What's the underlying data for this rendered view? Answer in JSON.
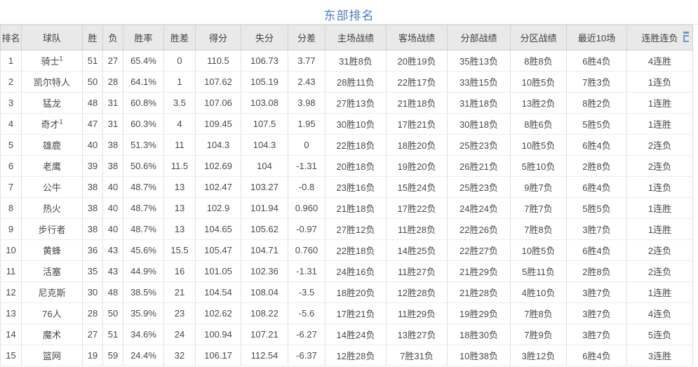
{
  "title": "东部排名",
  "accent_color": "#4e7bc4",
  "header_bg_color": "#e9e9e9",
  "table": {
    "columns": [
      "排名",
      "球队",
      "胜",
      "负",
      "胜率",
      "胜差",
      "得分",
      "失分",
      "分差",
      "主场战绩",
      "客场战绩",
      "分部战绩",
      "分区战绩",
      "最近10场",
      "连胜连负"
    ],
    "rows": [
      [
        "1",
        "骑士¹",
        "51",
        "27",
        "65.4%",
        "0",
        "110.5",
        "106.73",
        "3.77",
        "31胜8负",
        "20胜19负",
        "35胜13负",
        "8胜8负",
        "6胜4负",
        "4连胜"
      ],
      [
        "2",
        "凯尔特人",
        "50",
        "28",
        "64.1%",
        "1",
        "107.62",
        "105.19",
        "2.43",
        "28胜11负",
        "22胜17负",
        "33胜15负",
        "10胜5负",
        "7胜3负",
        "1连负"
      ],
      [
        "3",
        "猛龙",
        "48",
        "31",
        "60.8%",
        "3.5",
        "107.06",
        "103.08",
        "3.98",
        "27胜13负",
        "21胜18负",
        "31胜18负",
        "13胜2负",
        "8胜2负",
        "1连胜"
      ],
      [
        "4",
        "奇才¹",
        "47",
        "31",
        "60.3%",
        "4",
        "109.45",
        "107.5",
        "1.95",
        "30胜10负",
        "17胜21负",
        "30胜18负",
        "8胜6负",
        "5胜5负",
        "1连胜"
      ],
      [
        "5",
        "雄鹿",
        "40",
        "38",
        "51.3%",
        "11",
        "104.3",
        "104.3",
        "0",
        "22胜18负",
        "18胜20负",
        "25胜23负",
        "10胜5负",
        "6胜4负",
        "2连负"
      ],
      [
        "6",
        "老鹰",
        "39",
        "38",
        "50.6%",
        "11.5",
        "102.69",
        "104",
        "-1.31",
        "20胜18负",
        "19胜20负",
        "26胜21负",
        "5胜10负",
        "2胜8负",
        "2连负"
      ],
      [
        "7",
        "公牛",
        "38",
        "40",
        "48.7%",
        "13",
        "102.47",
        "103.27",
        "-0.8",
        "23胜16负",
        "15胜24负",
        "25胜23负",
        "9胜7负",
        "6胜4负",
        "1连负"
      ],
      [
        "8",
        "热火",
        "38",
        "40",
        "48.7%",
        "13",
        "102.9",
        "101.94",
        "0.960",
        "21胜18负",
        "17胜22负",
        "24胜24负",
        "7胜7负",
        "5胜5负",
        "1连胜"
      ],
      [
        "9",
        "步行者",
        "38",
        "40",
        "48.7%",
        "13",
        "104.65",
        "105.62",
        "-0.97",
        "27胜12负",
        "11胜28负",
        "22胜26负",
        "7胜8负",
        "3胜7负",
        "1连胜"
      ],
      [
        "10",
        "黄蜂",
        "36",
        "43",
        "45.6%",
        "15.5",
        "105.47",
        "104.71",
        "0.760",
        "22胜18负",
        "14胜25负",
        "22胜27负",
        "10胜5负",
        "6胜4负",
        "2连负"
      ],
      [
        "11",
        "活塞",
        "35",
        "43",
        "44.9%",
        "16",
        "101.05",
        "102.36",
        "-1.31",
        "24胜16负",
        "11胜27负",
        "21胜29负",
        "5胜11负",
        "2胜8负",
        "2连负"
      ],
      [
        "12",
        "尼克斯",
        "30",
        "48",
        "38.5%",
        "21",
        "104.54",
        "108.04",
        "-3.5",
        "18胜20负",
        "12胜28负",
        "21胜28负",
        "4胜10负",
        "3胜7负",
        "1连胜"
      ],
      [
        "13",
        "76人",
        "28",
        "50",
        "35.9%",
        "23",
        "102.62",
        "108.22",
        "-5.6",
        "17胜21负",
        "11胜29负",
        "19胜29负",
        "7胜8负",
        "3胜7负",
        "4连负"
      ],
      [
        "14",
        "魔术",
        "27",
        "51",
        "34.6%",
        "24",
        "100.94",
        "107.21",
        "-6.27",
        "14胜24负",
        "13胜27负",
        "18胜30负",
        "7胜9负",
        "3胜7负",
        "5连负"
      ],
      [
        "15",
        "篮网",
        "19",
        "59",
        "24.4%",
        "32",
        "106.17",
        "112.54",
        "-6.37",
        "12胜28负",
        "7胜31负",
        "10胜38负",
        "3胜12负",
        "6胜4负",
        "3连胜"
      ]
    ]
  }
}
